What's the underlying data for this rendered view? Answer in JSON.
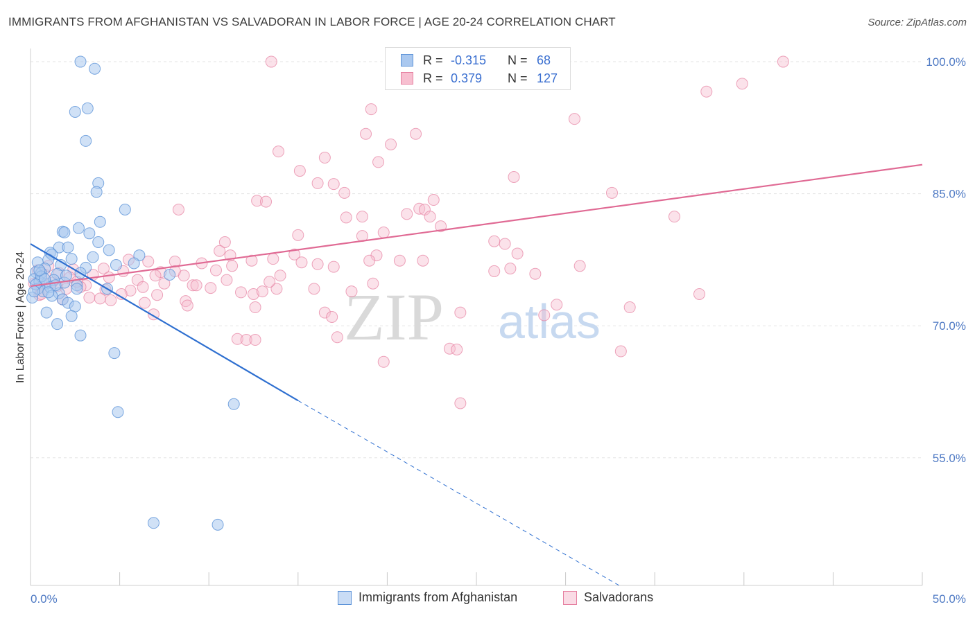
{
  "title": "IMMIGRANTS FROM AFGHANISTAN VS SALVADORAN IN LABOR FORCE | AGE 20-24 CORRELATION CHART",
  "source": "Source: ZipAtlas.com",
  "watermark": {
    "zip": "ZIP",
    "atlas": "atlas"
  },
  "colors": {
    "blue_fill": "#aac8ef",
    "blue_stroke": "#5d93d8",
    "blue_line": "#2e6fd0",
    "pink_fill": "#f7bfd0",
    "pink_stroke": "#e67fa0",
    "pink_line": "#e06a94",
    "tick_text": "#4f7ac4",
    "grid": "#e3e3e3"
  },
  "legend": {
    "blue": {
      "r_label": "R =",
      "r_value": "-0.315",
      "n_label": "N =",
      "n_value": "68"
    },
    "pink": {
      "r_label": "R =",
      "r_value": "0.379",
      "n_label": "N =",
      "n_value": "127"
    }
  },
  "bottom_legend": {
    "blue": "Immigrants from Afghanistan",
    "pink": "Salvadorans"
  },
  "chart_data": {
    "type": "scatter",
    "title": "IMMIGRANTS FROM AFGHANISTAN VS SALVADORAN IN LABOR FORCE | AGE 20-24 CORRELATION CHART",
    "xlabel": "",
    "ylabel": "In Labor Force | Age 20-24",
    "xlim": [
      0,
      50
    ],
    "ylim": [
      40.5,
      101.5
    ],
    "x_tick_labels": [
      {
        "value": 0,
        "label": "0.0%"
      },
      {
        "value": 50,
        "label": "50.0%"
      }
    ],
    "y_tick_labels": [
      {
        "value": 100,
        "label": "100.0%"
      },
      {
        "value": 85,
        "label": "85.0%"
      },
      {
        "value": 70,
        "label": "70.0%"
      },
      {
        "value": 55,
        "label": "55.0%"
      }
    ],
    "series": [
      {
        "name": "Immigrants from Afghanistan",
        "color": "#aac8ef",
        "trend": {
          "x": [
            0,
            15
          ],
          "y": [
            79.3,
            61.5
          ],
          "dashed_to": {
            "x": 33,
            "y": 40.5
          }
        },
        "points": [
          [
            2.8,
            100
          ],
          [
            3.6,
            99.2
          ],
          [
            2.5,
            94.3
          ],
          [
            3.2,
            94.7
          ],
          [
            3.1,
            91
          ],
          [
            3.8,
            86.2
          ],
          [
            3.7,
            85.2
          ],
          [
            5.3,
            83.2
          ],
          [
            3.9,
            81.8
          ],
          [
            1.8,
            80.7
          ],
          [
            2.7,
            81.1
          ],
          [
            3.3,
            80.5
          ],
          [
            1.9,
            80.6
          ],
          [
            1.6,
            78.9
          ],
          [
            2.1,
            78.9
          ],
          [
            3.8,
            79.5
          ],
          [
            1.1,
            78.3
          ],
          [
            1.2,
            78.1
          ],
          [
            2.3,
            77.6
          ],
          [
            3.5,
            77.8
          ],
          [
            4.4,
            78.6
          ],
          [
            6.1,
            78
          ],
          [
            0.4,
            77.2
          ],
          [
            1.0,
            77.5
          ],
          [
            5.8,
            77.1
          ],
          [
            0.8,
            76.5
          ],
          [
            1.7,
            76.9
          ],
          [
            3.1,
            76.6
          ],
          [
            4.8,
            76.9
          ],
          [
            0.3,
            76.1
          ],
          [
            0.6,
            76.0
          ],
          [
            1.5,
            75.9
          ],
          [
            2.8,
            76.0
          ],
          [
            7.8,
            75.8
          ],
          [
            0.2,
            75.3
          ],
          [
            0.5,
            75.0
          ],
          [
            0.9,
            74.8
          ],
          [
            1.3,
            75.2
          ],
          [
            1.9,
            74.9
          ],
          [
            2.6,
            74.6
          ],
          [
            0.4,
            74.2
          ],
          [
            0.7,
            73.9
          ],
          [
            1.1,
            74.4
          ],
          [
            1.6,
            73.7
          ],
          [
            2.6,
            74.2
          ],
          [
            4.3,
            74.2
          ],
          [
            0.1,
            73.2
          ],
          [
            1.2,
            73.4
          ],
          [
            1.8,
            73.0
          ],
          [
            2.1,
            72.6
          ],
          [
            2.5,
            72.2
          ],
          [
            0.9,
            71.5
          ],
          [
            2.3,
            71.1
          ],
          [
            1.5,
            70.2
          ],
          [
            2.8,
            68.9
          ],
          [
            4.7,
            66.9
          ],
          [
            11.4,
            61.1
          ],
          [
            4.9,
            60.2
          ],
          [
            6.9,
            47.6
          ],
          [
            10.5,
            47.4
          ],
          [
            0.6,
            75.6
          ],
          [
            0.3,
            74.7
          ],
          [
            1.4,
            74.6
          ],
          [
            0.8,
            75.3
          ],
          [
            2.0,
            75.7
          ],
          [
            1.0,
            73.8
          ],
          [
            0.5,
            76.3
          ],
          [
            0.2,
            73.9
          ]
        ]
      },
      {
        "name": "Salvadorans",
        "color": "#f7bfd0",
        "trend": {
          "x": [
            0,
            50
          ],
          "y": [
            74.5,
            88.3
          ]
        },
        "points": [
          [
            13.5,
            100
          ],
          [
            42.2,
            100
          ],
          [
            39.9,
            97.5
          ],
          [
            37.9,
            96.6
          ],
          [
            19.1,
            94.6
          ],
          [
            30.5,
            93.5
          ],
          [
            18.8,
            91.8
          ],
          [
            21.6,
            91.8
          ],
          [
            20.2,
            90.6
          ],
          [
            13.9,
            89.8
          ],
          [
            16.5,
            89.1
          ],
          [
            19.5,
            88.6
          ],
          [
            15.1,
            87.6
          ],
          [
            27.1,
            86.9
          ],
          [
            16.1,
            86.2
          ],
          [
            17.0,
            86.1
          ],
          [
            17.6,
            85.1
          ],
          [
            32.6,
            85.1
          ],
          [
            12.7,
            84.2
          ],
          [
            13.2,
            84.1
          ],
          [
            22.6,
            84.3
          ],
          [
            8.3,
            83.2
          ],
          [
            21.8,
            83.3
          ],
          [
            22.1,
            83.2
          ],
          [
            21.1,
            82.7
          ],
          [
            22.4,
            82.4
          ],
          [
            17.7,
            82.3
          ],
          [
            18.6,
            82.4
          ],
          [
            36.1,
            82.4
          ],
          [
            23.0,
            81.3
          ],
          [
            19.8,
            80.6
          ],
          [
            15.0,
            80.3
          ],
          [
            18.6,
            80.2
          ],
          [
            10.9,
            79.5
          ],
          [
            26.0,
            79.6
          ],
          [
            26.6,
            79.3
          ],
          [
            10.6,
            78.5
          ],
          [
            11.2,
            78.0
          ],
          [
            13.6,
            77.6
          ],
          [
            14.8,
            78.1
          ],
          [
            19.4,
            78.0
          ],
          [
            20.7,
            77.4
          ],
          [
            27.3,
            78.2
          ],
          [
            5.5,
            77.5
          ],
          [
            6.6,
            77.3
          ],
          [
            8.1,
            77.3
          ],
          [
            9.6,
            77.1
          ],
          [
            11.3,
            76.8
          ],
          [
            12.4,
            77.4
          ],
          [
            15.2,
            77.2
          ],
          [
            16.1,
            77.0
          ],
          [
            17.0,
            76.7
          ],
          [
            19.0,
            77.4
          ],
          [
            22.0,
            77.4
          ],
          [
            30.8,
            76.8
          ],
          [
            2.4,
            76.4
          ],
          [
            4.1,
            76.5
          ],
          [
            5.2,
            76.2
          ],
          [
            7.3,
            76.1
          ],
          [
            8.6,
            75.7
          ],
          [
            10.4,
            76.3
          ],
          [
            14.0,
            75.7
          ],
          [
            26.9,
            76.5
          ],
          [
            28.3,
            75.9
          ],
          [
            26.0,
            76.2
          ],
          [
            3.5,
            75.8
          ],
          [
            4.4,
            75.5
          ],
          [
            6.0,
            75.2
          ],
          [
            7.5,
            74.8
          ],
          [
            9.1,
            74.6
          ],
          [
            10.1,
            74.3
          ],
          [
            13.8,
            74.2
          ],
          [
            19.2,
            74.8
          ],
          [
            1.5,
            74.5
          ],
          [
            2.0,
            74.2
          ],
          [
            3.1,
            74.6
          ],
          [
            4.2,
            74.1
          ],
          [
            5.6,
            74.0
          ],
          [
            7.1,
            73.5
          ],
          [
            8.7,
            72.8
          ],
          [
            11.8,
            73.8
          ],
          [
            12.5,
            73.6
          ],
          [
            13.0,
            73.9
          ],
          [
            29.5,
            72.4
          ],
          [
            37.5,
            73.6
          ],
          [
            0.5,
            73.5
          ],
          [
            1.8,
            73.0
          ],
          [
            3.3,
            73.2
          ],
          [
            4.5,
            72.9
          ],
          [
            6.4,
            72.6
          ],
          [
            8.8,
            72.3
          ],
          [
            12.6,
            72.1
          ],
          [
            16.5,
            71.5
          ],
          [
            24.1,
            71.5
          ],
          [
            28.8,
            71.2
          ],
          [
            33.6,
            72.1
          ],
          [
            6.9,
            71.3
          ],
          [
            16.9,
            71.0
          ],
          [
            11.6,
            68.5
          ],
          [
            12.1,
            68.4
          ],
          [
            12.6,
            68.4
          ],
          [
            17.2,
            68.7
          ],
          [
            23.5,
            67.4
          ],
          [
            23.9,
            67.3
          ],
          [
            33.1,
            67.1
          ],
          [
            19.8,
            65.9
          ],
          [
            24.1,
            61.2
          ],
          [
            0.4,
            76.3
          ],
          [
            0.8,
            75.8
          ],
          [
            1.2,
            74.9
          ],
          [
            1.6,
            76.0
          ],
          [
            2.2,
            75.5
          ],
          [
            2.8,
            74.4
          ],
          [
            3.9,
            73.1
          ],
          [
            5.1,
            73.6
          ],
          [
            6.3,
            74.4
          ],
          [
            7.0,
            75.7
          ],
          [
            8.1,
            76.2
          ],
          [
            9.3,
            74.6
          ],
          [
            11.0,
            75.2
          ],
          [
            13.4,
            75.0
          ],
          [
            15.9,
            74.2
          ],
          [
            18.0,
            73.9
          ],
          [
            0.2,
            74.8
          ],
          [
            0.6,
            73.6
          ],
          [
            1.0,
            76.8
          ],
          [
            2.6,
            75.0
          ]
        ]
      }
    ]
  }
}
